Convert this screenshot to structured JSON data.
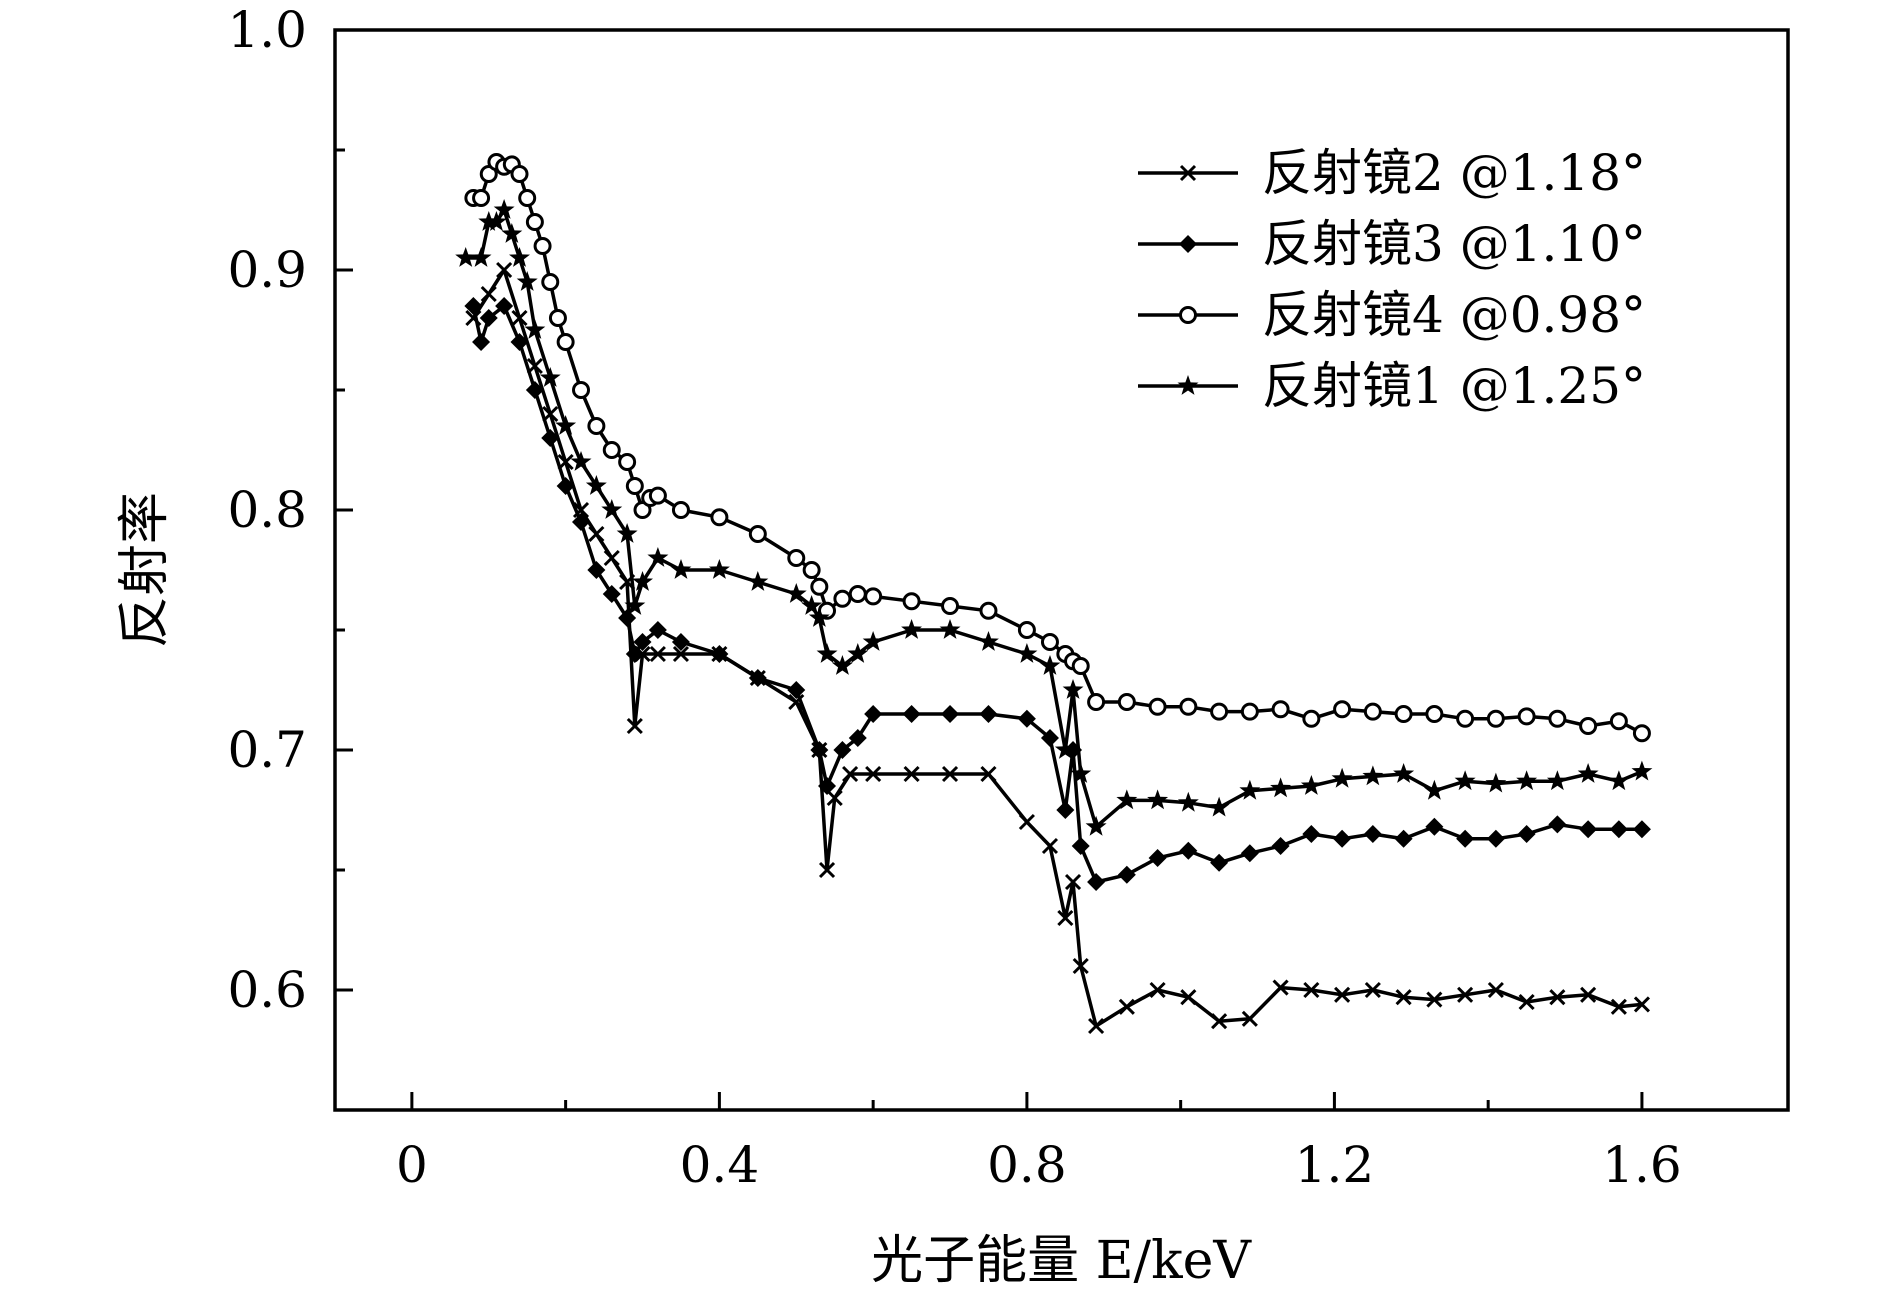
{
  "chart_data": {
    "type": "line",
    "xlabel": "光子能量 E/keV",
    "ylabel": "反射率",
    "xlim": [
      -0.1,
      1.79
    ],
    "ylim": [
      0.55,
      1.0
    ],
    "xticks": [
      "0",
      "0.4",
      "0.8",
      "1.2",
      "1.6"
    ],
    "xtick_values": [
      0,
      0.4,
      0.8,
      1.2,
      1.6
    ],
    "yticks": [
      "0.6",
      "0.7",
      "0.8",
      "0.9",
      "1.0"
    ],
    "ytick_values": [
      0.6,
      0.7,
      0.8,
      0.9,
      1.0
    ],
    "legend_position": "top-right",
    "grid": false,
    "series": [
      {
        "name": "反射镜2 @1.18°",
        "marker": "x",
        "x": [
          0.08,
          0.1,
          0.12,
          0.14,
          0.16,
          0.18,
          0.2,
          0.22,
          0.24,
          0.26,
          0.28,
          0.29,
          0.3,
          0.32,
          0.35,
          0.4,
          0.45,
          0.5,
          0.53,
          0.54,
          0.55,
          0.57,
          0.6,
          0.65,
          0.7,
          0.75,
          0.8,
          0.83,
          0.85,
          0.86,
          0.87,
          0.89,
          0.93,
          0.97,
          1.01,
          1.05,
          1.09,
          1.13,
          1.17,
          1.21,
          1.25,
          1.29,
          1.33,
          1.37,
          1.41,
          1.45,
          1.49,
          1.53,
          1.57,
          1.6
        ],
        "y": [
          0.88,
          0.89,
          0.9,
          0.88,
          0.86,
          0.84,
          0.82,
          0.8,
          0.79,
          0.78,
          0.77,
          0.71,
          0.74,
          0.74,
          0.74,
          0.74,
          0.73,
          0.72,
          0.7,
          0.65,
          0.68,
          0.69,
          0.69,
          0.69,
          0.69,
          0.69,
          0.67,
          0.66,
          0.63,
          0.645,
          0.61,
          0.585,
          0.593,
          0.6,
          0.597,
          0.587,
          0.588,
          0.601,
          0.6,
          0.598,
          0.6,
          0.597,
          0.596,
          0.598,
          0.6,
          0.595,
          0.597,
          0.598,
          0.593,
          0.594
        ]
      },
      {
        "name": "反射镜3 @1.10°",
        "marker": "diamond",
        "x": [
          0.08,
          0.09,
          0.1,
          0.12,
          0.14,
          0.16,
          0.18,
          0.2,
          0.22,
          0.24,
          0.26,
          0.28,
          0.29,
          0.3,
          0.32,
          0.35,
          0.4,
          0.45,
          0.5,
          0.53,
          0.54,
          0.56,
          0.58,
          0.6,
          0.65,
          0.7,
          0.75,
          0.8,
          0.83,
          0.85,
          0.86,
          0.87,
          0.89,
          0.93,
          0.97,
          1.01,
          1.05,
          1.09,
          1.13,
          1.17,
          1.21,
          1.25,
          1.29,
          1.33,
          1.37,
          1.41,
          1.45,
          1.49,
          1.53,
          1.57,
          1.6
        ],
        "y": [
          0.885,
          0.87,
          0.88,
          0.885,
          0.87,
          0.85,
          0.83,
          0.81,
          0.795,
          0.775,
          0.765,
          0.755,
          0.74,
          0.745,
          0.75,
          0.745,
          0.74,
          0.73,
          0.725,
          0.7,
          0.685,
          0.7,
          0.705,
          0.715,
          0.715,
          0.715,
          0.715,
          0.713,
          0.705,
          0.675,
          0.7,
          0.66,
          0.645,
          0.648,
          0.655,
          0.658,
          0.653,
          0.657,
          0.66,
          0.665,
          0.663,
          0.665,
          0.663,
          0.668,
          0.663,
          0.663,
          0.665,
          0.669,
          0.667,
          0.667,
          0.667
        ]
      },
      {
        "name": "反射镜4 @0.98°",
        "marker": "circle",
        "x": [
          0.08,
          0.09,
          0.1,
          0.11,
          0.12,
          0.13,
          0.14,
          0.15,
          0.16,
          0.17,
          0.18,
          0.19,
          0.2,
          0.22,
          0.24,
          0.26,
          0.28,
          0.29,
          0.3,
          0.31,
          0.32,
          0.35,
          0.4,
          0.45,
          0.5,
          0.52,
          0.53,
          0.54,
          0.56,
          0.58,
          0.6,
          0.65,
          0.7,
          0.75,
          0.8,
          0.83,
          0.85,
          0.86,
          0.87,
          0.89,
          0.93,
          0.97,
          1.01,
          1.05,
          1.09,
          1.13,
          1.17,
          1.21,
          1.25,
          1.29,
          1.33,
          1.37,
          1.41,
          1.45,
          1.49,
          1.53,
          1.57,
          1.6
        ],
        "y": [
          0.93,
          0.93,
          0.94,
          0.945,
          0.943,
          0.944,
          0.94,
          0.93,
          0.92,
          0.91,
          0.895,
          0.88,
          0.87,
          0.85,
          0.835,
          0.825,
          0.82,
          0.81,
          0.8,
          0.805,
          0.806,
          0.8,
          0.797,
          0.79,
          0.78,
          0.775,
          0.768,
          0.758,
          0.763,
          0.765,
          0.764,
          0.762,
          0.76,
          0.758,
          0.75,
          0.745,
          0.74,
          0.737,
          0.735,
          0.72,
          0.72,
          0.718,
          0.718,
          0.716,
          0.716,
          0.717,
          0.713,
          0.717,
          0.716,
          0.715,
          0.715,
          0.713,
          0.713,
          0.714,
          0.713,
          0.71,
          0.712,
          0.707
        ]
      },
      {
        "name": "反射镜1 @1.25°",
        "marker": "star",
        "x": [
          0.07,
          0.09,
          0.1,
          0.11,
          0.12,
          0.13,
          0.14,
          0.15,
          0.16,
          0.18,
          0.2,
          0.22,
          0.24,
          0.26,
          0.28,
          0.29,
          0.3,
          0.32,
          0.35,
          0.4,
          0.45,
          0.5,
          0.52,
          0.53,
          0.54,
          0.56,
          0.58,
          0.6,
          0.65,
          0.7,
          0.75,
          0.8,
          0.83,
          0.85,
          0.86,
          0.87,
          0.89,
          0.93,
          0.97,
          1.01,
          1.05,
          1.09,
          1.13,
          1.17,
          1.21,
          1.25,
          1.29,
          1.33,
          1.37,
          1.41,
          1.45,
          1.49,
          1.53,
          1.57,
          1.6
        ],
        "y": [
          0.905,
          0.905,
          0.92,
          0.92,
          0.925,
          0.915,
          0.905,
          0.895,
          0.875,
          0.855,
          0.835,
          0.82,
          0.81,
          0.8,
          0.79,
          0.76,
          0.77,
          0.78,
          0.775,
          0.775,
          0.77,
          0.765,
          0.76,
          0.755,
          0.74,
          0.735,
          0.74,
          0.745,
          0.75,
          0.75,
          0.745,
          0.74,
          0.735,
          0.7,
          0.725,
          0.69,
          0.668,
          0.679,
          0.679,
          0.678,
          0.676,
          0.683,
          0.684,
          0.685,
          0.688,
          0.689,
          0.69,
          0.683,
          0.687,
          0.686,
          0.687,
          0.687,
          0.69,
          0.687,
          0.691
        ]
      }
    ]
  }
}
